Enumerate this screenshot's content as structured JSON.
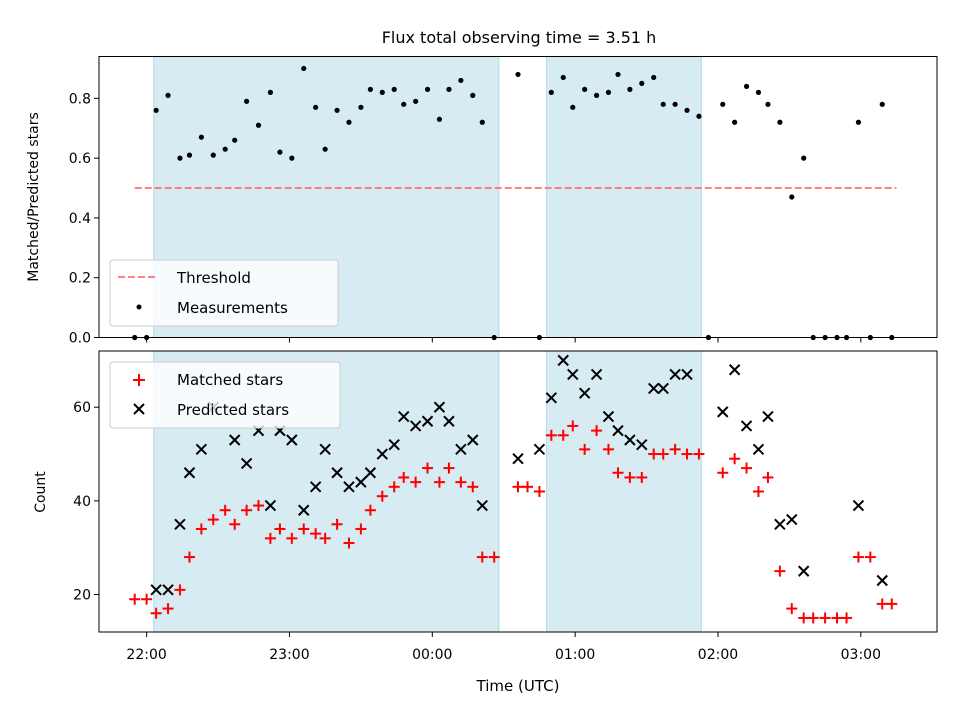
{
  "chart_data": [
    {
      "type": "scatter",
      "title": "Flux total observing time = 3.51 h",
      "xlabel": "",
      "ylabel": "Matched/Predicted stars",
      "x_unit": "time (UTC)",
      "xlim": [
        "21:40",
        "03:32"
      ],
      "ylim": [
        0,
        0.94
      ],
      "yticks": [
        0.0,
        0.2,
        0.4,
        0.6,
        0.8
      ],
      "ytick_labels": [
        "0.0",
        "0.2",
        "0.4",
        "0.6",
        "0.8"
      ],
      "xticks": [
        "22:00",
        "23:00",
        "00:00",
        "01:00",
        "02:00",
        "03:00"
      ],
      "legend_position": "lower-left",
      "shaded_intervals": [
        {
          "start": "22:03",
          "end": "00:28",
          "color": "#add8e6"
        },
        {
          "start": "00:48",
          "end": "01:53",
          "color": "#add8e6"
        }
      ],
      "threshold": {
        "name": "Threshold",
        "value": 0.5,
        "from": "21:55",
        "to": "03:15",
        "color": "#ff7070",
        "style": "dashed"
      },
      "series": [
        {
          "name": "Measurements",
          "marker": "dot",
          "color": "#000000",
          "points": [
            [
              "21:55",
              0.0
            ],
            [
              "22:00",
              0.0
            ],
            [
              "22:04",
              0.76
            ],
            [
              "22:09",
              0.81
            ],
            [
              "22:14",
              0.6
            ],
            [
              "22:18",
              0.61
            ],
            [
              "22:23",
              0.67
            ],
            [
              "22:28",
              0.61
            ],
            [
              "22:33",
              0.63
            ],
            [
              "22:37",
              0.66
            ],
            [
              "22:42",
              0.79
            ],
            [
              "22:47",
              0.71
            ],
            [
              "22:52",
              0.82
            ],
            [
              "22:56",
              0.62
            ],
            [
              "23:01",
              0.6
            ],
            [
              "23:06",
              0.9
            ],
            [
              "23:11",
              0.77
            ],
            [
              "23:15",
              0.63
            ],
            [
              "23:20",
              0.76
            ],
            [
              "23:25",
              0.72
            ],
            [
              "23:30",
              0.77
            ],
            [
              "23:34",
              0.83
            ],
            [
              "23:39",
              0.82
            ],
            [
              "23:44",
              0.83
            ],
            [
              "23:48",
              0.78
            ],
            [
              "23:53",
              0.79
            ],
            [
              "23:58",
              0.83
            ],
            [
              "00:03",
              0.73
            ],
            [
              "00:07",
              0.83
            ],
            [
              "00:12",
              0.86
            ],
            [
              "00:17",
              0.81
            ],
            [
              "00:21",
              0.72
            ],
            [
              "00:26",
              0.0
            ],
            [
              "00:36",
              0.88
            ],
            [
              "00:45",
              0.0
            ],
            [
              "00:50",
              0.82
            ],
            [
              "00:55",
              0.87
            ],
            [
              "00:59",
              0.77
            ],
            [
              "01:04",
              0.83
            ],
            [
              "01:09",
              0.81
            ],
            [
              "01:14",
              0.82
            ],
            [
              "01:18",
              0.88
            ],
            [
              "01:23",
              0.83
            ],
            [
              "01:28",
              0.85
            ],
            [
              "01:33",
              0.87
            ],
            [
              "01:37",
              0.78
            ],
            [
              "01:42",
              0.78
            ],
            [
              "01:47",
              0.76
            ],
            [
              "01:52",
              0.74
            ],
            [
              "01:56",
              0.0
            ],
            [
              "02:02",
              0.78
            ],
            [
              "02:07",
              0.72
            ],
            [
              "02:12",
              0.84
            ],
            [
              "02:17",
              0.82
            ],
            [
              "02:21",
              0.78
            ],
            [
              "02:26",
              0.72
            ],
            [
              "02:31",
              0.47
            ],
            [
              "02:36",
              0.6
            ],
            [
              "02:40",
              0.0
            ],
            [
              "02:45",
              0.0
            ],
            [
              "02:50",
              0.0
            ],
            [
              "02:54",
              0.0
            ],
            [
              "02:59",
              0.72
            ],
            [
              "03:04",
              0.0
            ],
            [
              "03:09",
              0.78
            ],
            [
              "03:13",
              0.0
            ]
          ]
        }
      ]
    },
    {
      "type": "scatter",
      "title": "",
      "xlabel": "Time (UTC)",
      "ylabel": "Count",
      "xlim": [
        "21:40",
        "03:32"
      ],
      "ylim": [
        12,
        72
      ],
      "yticks": [
        20,
        40,
        60
      ],
      "ytick_labels": [
        "20",
        "40",
        "60"
      ],
      "xticks": [
        "22:00",
        "23:00",
        "00:00",
        "01:00",
        "02:00",
        "03:00"
      ],
      "legend_position": "upper-left",
      "shaded_intervals": [
        {
          "start": "22:03",
          "end": "00:28",
          "color": "#add8e6"
        },
        {
          "start": "00:48",
          "end": "01:53",
          "color": "#add8e6"
        }
      ],
      "series": [
        {
          "name": "Matched stars",
          "marker": "plus",
          "color": "#ff0000",
          "points": [
            [
              "21:55",
              19
            ],
            [
              "22:00",
              19
            ],
            [
              "22:04",
              16
            ],
            [
              "22:09",
              17
            ],
            [
              "22:14",
              21
            ],
            [
              "22:18",
              28
            ],
            [
              "22:23",
              34
            ],
            [
              "22:28",
              36
            ],
            [
              "22:33",
              38
            ],
            [
              "22:37",
              35
            ],
            [
              "22:42",
              38
            ],
            [
              "22:47",
              39
            ],
            [
              "22:52",
              32
            ],
            [
              "22:56",
              34
            ],
            [
              "23:01",
              32
            ],
            [
              "23:06",
              34
            ],
            [
              "23:11",
              33
            ],
            [
              "23:15",
              32
            ],
            [
              "23:20",
              35
            ],
            [
              "23:25",
              31
            ],
            [
              "23:30",
              34
            ],
            [
              "23:34",
              38
            ],
            [
              "23:39",
              41
            ],
            [
              "23:44",
              43
            ],
            [
              "23:48",
              45
            ],
            [
              "23:53",
              44
            ],
            [
              "23:58",
              47
            ],
            [
              "00:03",
              44
            ],
            [
              "00:07",
              47
            ],
            [
              "00:12",
              44
            ],
            [
              "00:17",
              43
            ],
            [
              "00:21",
              28
            ],
            [
              "00:26",
              28
            ],
            [
              "00:36",
              43
            ],
            [
              "00:40",
              43
            ],
            [
              "00:45",
              42
            ],
            [
              "00:50",
              54
            ],
            [
              "00:55",
              54
            ],
            [
              "00:59",
              56
            ],
            [
              "01:04",
              51
            ],
            [
              "01:09",
              55
            ],
            [
              "01:14",
              51
            ],
            [
              "01:18",
              46
            ],
            [
              "01:23",
              45
            ],
            [
              "01:28",
              45
            ],
            [
              "01:33",
              50
            ],
            [
              "01:37",
              50
            ],
            [
              "01:42",
              51
            ],
            [
              "01:47",
              50
            ],
            [
              "01:52",
              50
            ],
            [
              "02:02",
              46
            ],
            [
              "02:07",
              49
            ],
            [
              "02:12",
              47
            ],
            [
              "02:17",
              42
            ],
            [
              "02:21",
              45
            ],
            [
              "02:26",
              25
            ],
            [
              "02:31",
              17
            ],
            [
              "02:36",
              15
            ],
            [
              "02:40",
              15
            ],
            [
              "02:45",
              15
            ],
            [
              "02:50",
              15
            ],
            [
              "02:54",
              15
            ],
            [
              "02:59",
              28
            ],
            [
              "03:04",
              28
            ],
            [
              "03:09",
              18
            ],
            [
              "03:13",
              18
            ]
          ]
        },
        {
          "name": "Predicted stars",
          "marker": "x",
          "color": "#000000",
          "points": [
            [
              "22:04",
              21
            ],
            [
              "22:09",
              21
            ],
            [
              "22:14",
              35
            ],
            [
              "22:18",
              46
            ],
            [
              "22:23",
              51
            ],
            [
              "22:28",
              60
            ],
            [
              "22:37",
              53
            ],
            [
              "22:42",
              48
            ],
            [
              "22:47",
              55
            ],
            [
              "22:52",
              39
            ],
            [
              "22:56",
              55
            ],
            [
              "23:01",
              53
            ],
            [
              "23:06",
              38
            ],
            [
              "23:11",
              43
            ],
            [
              "23:15",
              51
            ],
            [
              "23:20",
              46
            ],
            [
              "23:25",
              43
            ],
            [
              "23:30",
              44
            ],
            [
              "23:34",
              46
            ],
            [
              "23:39",
              50
            ],
            [
              "23:44",
              52
            ],
            [
              "23:48",
              58
            ],
            [
              "23:53",
              56
            ],
            [
              "23:58",
              57
            ],
            [
              "00:03",
              60
            ],
            [
              "00:07",
              57
            ],
            [
              "00:12",
              51
            ],
            [
              "00:17",
              53
            ],
            [
              "00:21",
              39
            ],
            [
              "00:36",
              49
            ],
            [
              "00:45",
              51
            ],
            [
              "00:50",
              62
            ],
            [
              "00:55",
              70
            ],
            [
              "00:59",
              67
            ],
            [
              "01:04",
              63
            ],
            [
              "01:09",
              67
            ],
            [
              "01:14",
              58
            ],
            [
              "01:18",
              55
            ],
            [
              "01:23",
              53
            ],
            [
              "01:28",
              52
            ],
            [
              "01:33",
              64
            ],
            [
              "01:37",
              64
            ],
            [
              "01:42",
              67
            ],
            [
              "01:47",
              67
            ],
            [
              "02:02",
              59
            ],
            [
              "02:07",
              68
            ],
            [
              "02:12",
              56
            ],
            [
              "02:17",
              51
            ],
            [
              "02:21",
              58
            ],
            [
              "02:26",
              35
            ],
            [
              "02:31",
              36
            ],
            [
              "02:36",
              25
            ],
            [
              "02:59",
              39
            ],
            [
              "03:09",
              23
            ]
          ]
        }
      ]
    }
  ]
}
